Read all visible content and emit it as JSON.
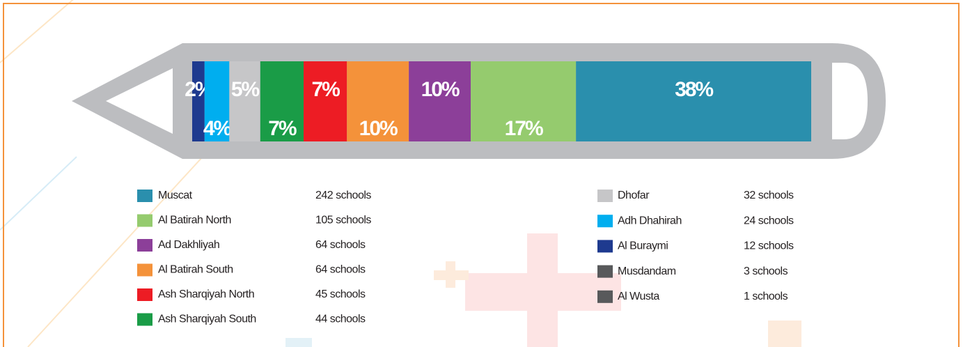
{
  "chart_data": {
    "type": "bar",
    "categories": [
      "Muscat",
      "Al Batirah North",
      "Ad Dakhliyah",
      "Al Batirah South",
      "Ash Sharqiyah North",
      "Ash Sharqiyah South",
      "Dhofar",
      "Adh Dhahirah",
      "Al Buraymi",
      "Musdandam",
      "Al Wusta"
    ],
    "values": [
      38,
      17,
      10,
      10,
      7,
      7,
      5,
      4,
      2,
      null,
      null
    ],
    "value_labels": [
      "38%",
      "17%",
      "10%",
      "10%",
      "7%",
      "7%",
      "5%",
      "4%",
      "2%",
      null,
      null
    ],
    "counts": [
      {
        "value": 242,
        "label": "242 schools"
      },
      {
        "value": 105,
        "label": "105 schools"
      },
      {
        "value": 64,
        "label": "64 schools"
      },
      {
        "value": 64,
        "label": "64 schools"
      },
      {
        "value": 45,
        "label": "45 schools"
      },
      {
        "value": 44,
        "label": "44 schools"
      },
      {
        "value": 32,
        "label": "32 schools"
      },
      {
        "value": 24,
        "label": "24 schools"
      },
      {
        "value": 12,
        "label": "12 schools"
      },
      {
        "value": 3,
        "label": "3 schools"
      },
      {
        "value": 1,
        "label": "1 schools"
      }
    ],
    "colors": [
      "#2a8fad",
      "#95cb6e",
      "#8c3f99",
      "#f4923a",
      "#ed1c24",
      "#1a9c47",
      "#c6c6c8",
      "#00aeef",
      "#1e3a8f",
      "#58595b",
      "#58595b"
    ]
  }
}
